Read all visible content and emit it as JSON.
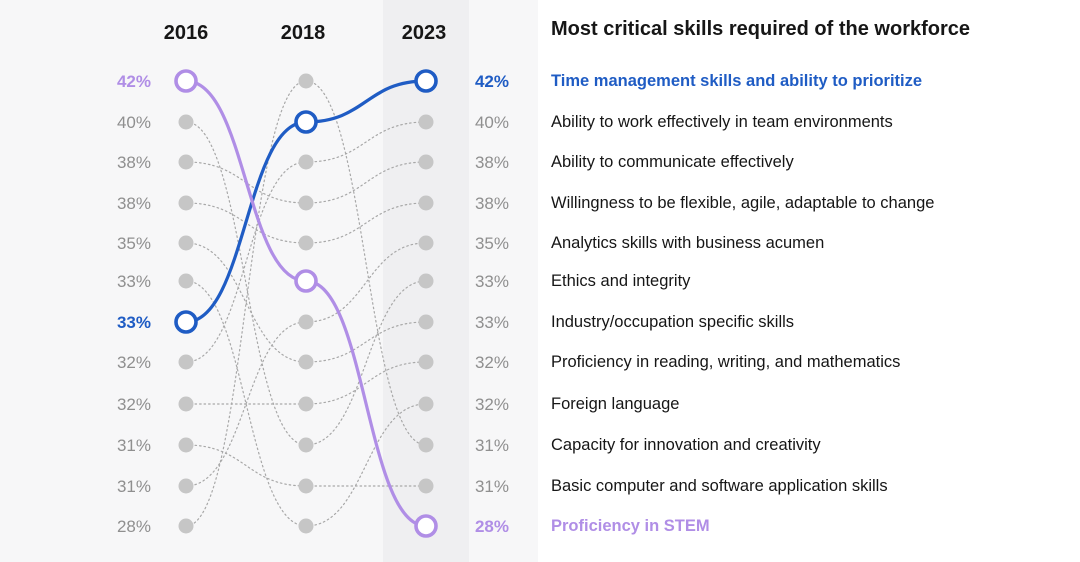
{
  "chart_data": {
    "type": "slope",
    "title": "Most critical skills required of the workforce",
    "years": [
      "2016",
      "2018",
      "2023"
    ],
    "left_labels": [
      "42%",
      "40%",
      "38%",
      "38%",
      "35%",
      "33%",
      "33%",
      "32%",
      "32%",
      "31%",
      "31%",
      "28%"
    ],
    "right_labels": [
      "42%",
      "40%",
      "38%",
      "38%",
      "35%",
      "33%",
      "33%",
      "32%",
      "32%",
      "31%",
      "31%",
      "28%"
    ],
    "skills": [
      "Time management skills and ability to prioritize",
      "Ability to work effectively in team environments",
      "Ability to communicate effectively",
      "Willingness to be flexible, agile, adaptable to change",
      "Analytics skills with business acumen",
      "Ethics and integrity",
      "Industry/occupation specific skills",
      "Proficiency in reading, writing, and mathematics",
      "Foreign language",
      "Capacity for innovation and creativity",
      "Basic computer and software application skills",
      "Proficiency in STEM"
    ],
    "highlighted": [
      {
        "name": "Time management skills and ability to prioritize",
        "ranks": [
          7,
          2,
          1
        ],
        "color": "#1f5cc4"
      },
      {
        "name": "Proficiency in STEM",
        "ranks": [
          1,
          6,
          12
        ],
        "color": "#b08ee6"
      }
    ],
    "background_ranks": [
      [
        8,
        3,
        2
      ],
      [
        3,
        4,
        3
      ],
      [
        4,
        5,
        4
      ],
      [
        11,
        7,
        5
      ],
      [
        2,
        10,
        6
      ],
      [
        5,
        8,
        7
      ],
      [
        9,
        9,
        8
      ],
      [
        6,
        12,
        9
      ],
      [
        12,
        1,
        10
      ],
      [
        10,
        11,
        11
      ]
    ],
    "dot_color": "#c6c6c6",
    "line_color": "#a8a8a8"
  }
}
